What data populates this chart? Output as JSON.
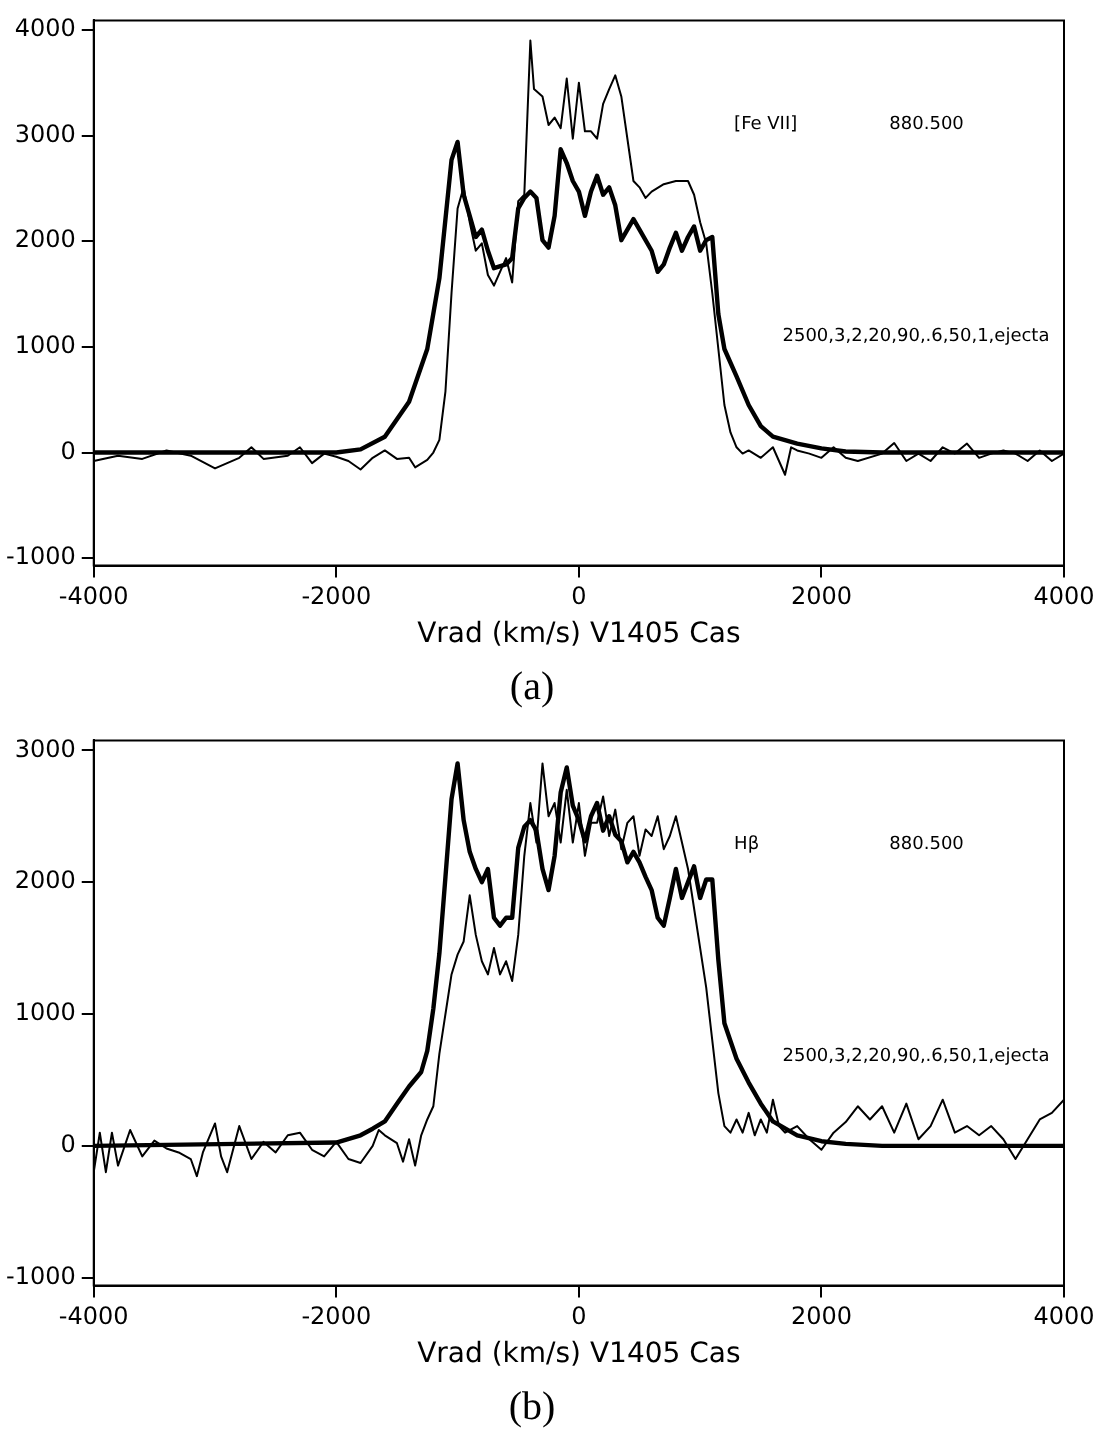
{
  "chart_data": [
    {
      "type": "line",
      "title": "(a)",
      "xlabel": "Vrad (km/s) V1405 Cas",
      "annotations": [
        "[Fe VII]",
        "880.500",
        "2500,3,2,20,90,.6,50,1,ejecta"
      ],
      "xlim": [
        -4000,
        4000
      ],
      "xticks": [
        -4000,
        -2000,
        0,
        2000,
        4000
      ],
      "ylim": [
        -1070,
        4090
      ],
      "yticks": [
        -1000,
        0,
        1000,
        2000,
        3000,
        4000
      ],
      "grid": false,
      "legend": false,
      "marker": "none",
      "line_style": "solid",
      "series": [
        {
          "color": "#000000",
          "x": [
            -4000,
            -2000,
            -1800,
            -1600,
            -1400,
            -1250,
            -1150,
            -1050,
            -1000,
            -950,
            -900,
            -850,
            -800,
            -750,
            -700,
            -600,
            -550,
            -500,
            -450,
            -400,
            -350,
            -300,
            -250,
            -200,
            -150,
            -100,
            -50,
            0,
            50,
            100,
            150,
            200,
            250,
            300,
            350,
            400,
            450,
            500,
            600,
            650,
            700,
            750,
            800,
            850,
            900,
            950,
            1000,
            1050,
            1100,
            1150,
            1200,
            1300,
            1400,
            1500,
            1600,
            1800,
            2000,
            2200,
            2500,
            4000
          ],
          "values": [
            0,
            0,
            30,
            150,
            480,
            980,
            1650,
            2770,
            2940,
            2440,
            2240,
            2040,
            2110,
            1910,
            1745,
            1780,
            1840,
            2310,
            2410,
            2470,
            2410,
            2010,
            1940,
            2240,
            2870,
            2740,
            2570,
            2470,
            2240,
            2470,
            2620,
            2440,
            2510,
            2340,
            2010,
            2110,
            2210,
            2110,
            1910,
            1710,
            1780,
            1940,
            2080,
            1910,
            2040,
            2140,
            1910,
            2010,
            2040,
            1310,
            980,
            720,
            450,
            250,
            150,
            85,
            40,
            10,
            0,
            0
          ]
        },
        {
          "color": "#000000",
          "x": [
            -4000,
            -3800,
            -3600,
            -3400,
            -3200,
            -3000,
            -2800,
            -2700,
            -2600,
            -2400,
            -2300,
            -2200,
            -2100,
            -2000,
            -1900,
            -1800,
            -1700,
            -1600,
            -1500,
            -1400,
            -1350,
            -1250,
            -1200,
            -1150,
            -1100,
            -1050,
            -1000,
            -950,
            -900,
            -850,
            -800,
            -750,
            -700,
            -650,
            -600,
            -550,
            -500,
            -450,
            -400,
            -370,
            -300,
            -250,
            -200,
            -150,
            -100,
            -50,
            0,
            50,
            100,
            150,
            200,
            250,
            300,
            350,
            400,
            450,
            500,
            550,
            600,
            700,
            800,
            900,
            950,
            1000,
            1050,
            1100,
            1150,
            1200,
            1250,
            1300,
            1350,
            1400,
            1500,
            1600,
            1650,
            1700,
            1750,
            1800,
            1900,
            2000,
            2100,
            2200,
            2300,
            2500,
            2600,
            2700,
            2800,
            2900,
            3000,
            3100,
            3200,
            3300,
            3400,
            3500,
            3600,
            3700,
            3800,
            3900,
            4000
          ],
          "values": [
            -80,
            -30,
            -60,
            20,
            -30,
            -150,
            -50,
            50,
            -60,
            -30,
            50,
            -100,
            -10,
            -40,
            -80,
            -160,
            -50,
            20,
            -60,
            -50,
            -140,
            -70,
            0,
            120,
            580,
            1510,
            2310,
            2510,
            2180,
            1910,
            1980,
            1680,
            1580,
            1710,
            1840,
            1610,
            2380,
            2440,
            3900,
            3440,
            3370,
            3100,
            3170,
            3070,
            3540,
            2970,
            3500,
            3040,
            3040,
            2970,
            3300,
            3440,
            3570,
            3370,
            2970,
            2570,
            2510,
            2410,
            2470,
            2540,
            2570,
            2570,
            2440,
            2180,
            1980,
            1510,
            980,
            450,
            190,
            50,
            -10,
            20,
            -50,
            50,
            -80,
            -210,
            50,
            20,
            -10,
            -50,
            50,
            -50,
            -80,
            -10,
            90,
            -80,
            -10,
            -80,
            50,
            -10,
            85,
            -50,
            -10,
            20,
            -10,
            -80,
            20,
            -80,
            -10
          ]
        }
      ]
    },
    {
      "type": "line",
      "title": "(b)",
      "xlabel": "Vrad (km/s) V1405 Cas",
      "annotations": [
        "Hβ",
        "880.500",
        "2500,3,2,20,90,.6,50,1,ejecta"
      ],
      "xlim": [
        -4000,
        4000
      ],
      "xticks": [
        -4000,
        -2000,
        0,
        2000,
        4000
      ],
      "ylim": [
        -1060,
        3075
      ],
      "yticks": [
        -1000,
        0,
        1000,
        2000,
        3000
      ],
      "grid": false,
      "legend": false,
      "marker": "none",
      "line_style": "solid",
      "series": [
        {
          "color": "#000000",
          "x": [
            -4000,
            -2000,
            -1800,
            -1700,
            -1600,
            -1500,
            -1400,
            -1300,
            -1250,
            -1200,
            -1150,
            -1100,
            -1050,
            -1000,
            -950,
            -900,
            -850,
            -800,
            -750,
            -700,
            -650,
            -600,
            -550,
            -500,
            -450,
            -400,
            -350,
            -300,
            -250,
            -200,
            -150,
            -100,
            -50,
            0,
            50,
            100,
            150,
            200,
            250,
            300,
            350,
            400,
            450,
            500,
            550,
            600,
            650,
            700,
            750,
            800,
            850,
            900,
            950,
            1000,
            1050,
            1100,
            1150,
            1200,
            1300,
            1400,
            1500,
            1600,
            1800,
            2000,
            2200,
            2500,
            4000
          ],
          "values": [
            0,
            25,
            80,
            130,
            185,
            320,
            450,
            560,
            720,
            1040,
            1460,
            2040,
            2630,
            2900,
            2470,
            2230,
            2100,
            2000,
            2100,
            1730,
            1670,
            1730,
            1730,
            2260,
            2420,
            2470,
            2390,
            2100,
            1940,
            2200,
            2680,
            2870,
            2580,
            2470,
            2310,
            2500,
            2600,
            2390,
            2500,
            2360,
            2310,
            2150,
            2230,
            2150,
            2040,
            1940,
            1730,
            1670,
            1880,
            2100,
            1880,
            2000,
            2120,
            1880,
            2020,
            2020,
            1410,
            930,
            660,
            480,
            320,
            185,
            80,
            35,
            15,
            0,
            0
          ]
        },
        {
          "color": "#000000",
          "x": [
            -4000,
            -3950,
            -3900,
            -3850,
            -3800,
            -3700,
            -3600,
            -3500,
            -3400,
            -3300,
            -3200,
            -3150,
            -3100,
            -3000,
            -2950,
            -2900,
            -2800,
            -2700,
            -2600,
            -2500,
            -2400,
            -2300,
            -2200,
            -2100,
            -2000,
            -1900,
            -1800,
            -1700,
            -1650,
            -1600,
            -1500,
            -1450,
            -1400,
            -1350,
            -1300,
            -1250,
            -1200,
            -1150,
            -1100,
            -1050,
            -1000,
            -950,
            -900,
            -850,
            -800,
            -750,
            -700,
            -650,
            -600,
            -550,
            -500,
            -450,
            -400,
            -350,
            -300,
            -250,
            -200,
            -150,
            -100,
            -50,
            0,
            50,
            100,
            150,
            200,
            250,
            300,
            350,
            400,
            450,
            500,
            550,
            600,
            650,
            700,
            750,
            800,
            850,
            900,
            950,
            1000,
            1050,
            1100,
            1150,
            1200,
            1250,
            1300,
            1350,
            1400,
            1450,
            1500,
            1550,
            1600,
            1650,
            1700,
            1800,
            1900,
            2000,
            2100,
            2200,
            2300,
            2400,
            2500,
            2600,
            2700,
            2800,
            2900,
            3000,
            3100,
            3200,
            3300,
            3400,
            3500,
            3600,
            3700,
            3800,
            3900,
            4000
          ],
          "values": [
            -200,
            100,
            -200,
            100,
            -150,
            120,
            -80,
            40,
            -20,
            -50,
            -100,
            -230,
            -50,
            170,
            -80,
            -200,
            150,
            -100,
            30,
            -50,
            80,
            100,
            -30,
            -80,
            30,
            -100,
            -130,
            0,
            120,
            80,
            20,
            -120,
            50,
            -150,
            80,
            200,
            300,
            700,
            1000,
            1300,
            1450,
            1550,
            1900,
            1600,
            1400,
            1300,
            1500,
            1300,
            1400,
            1250,
            1600,
            2200,
            2600,
            2300,
            2900,
            2500,
            2600,
            2300,
            2700,
            2300,
            2600,
            2200,
            2450,
            2450,
            2650,
            2350,
            2550,
            2250,
            2450,
            2500,
            2200,
            2400,
            2350,
            2500,
            2250,
            2350,
            2500,
            2300,
            2100,
            1800,
            1500,
            1200,
            800,
            400,
            150,
            100,
            200,
            100,
            250,
            80,
            200,
            100,
            350,
            150,
            100,
            150,
            50,
            -30,
            100,
            180,
            300,
            200,
            300,
            100,
            320,
            50,
            150,
            350,
            100,
            150,
            80,
            150,
            50,
            -100,
            50,
            200,
            250,
            350
          ]
        }
      ]
    }
  ]
}
